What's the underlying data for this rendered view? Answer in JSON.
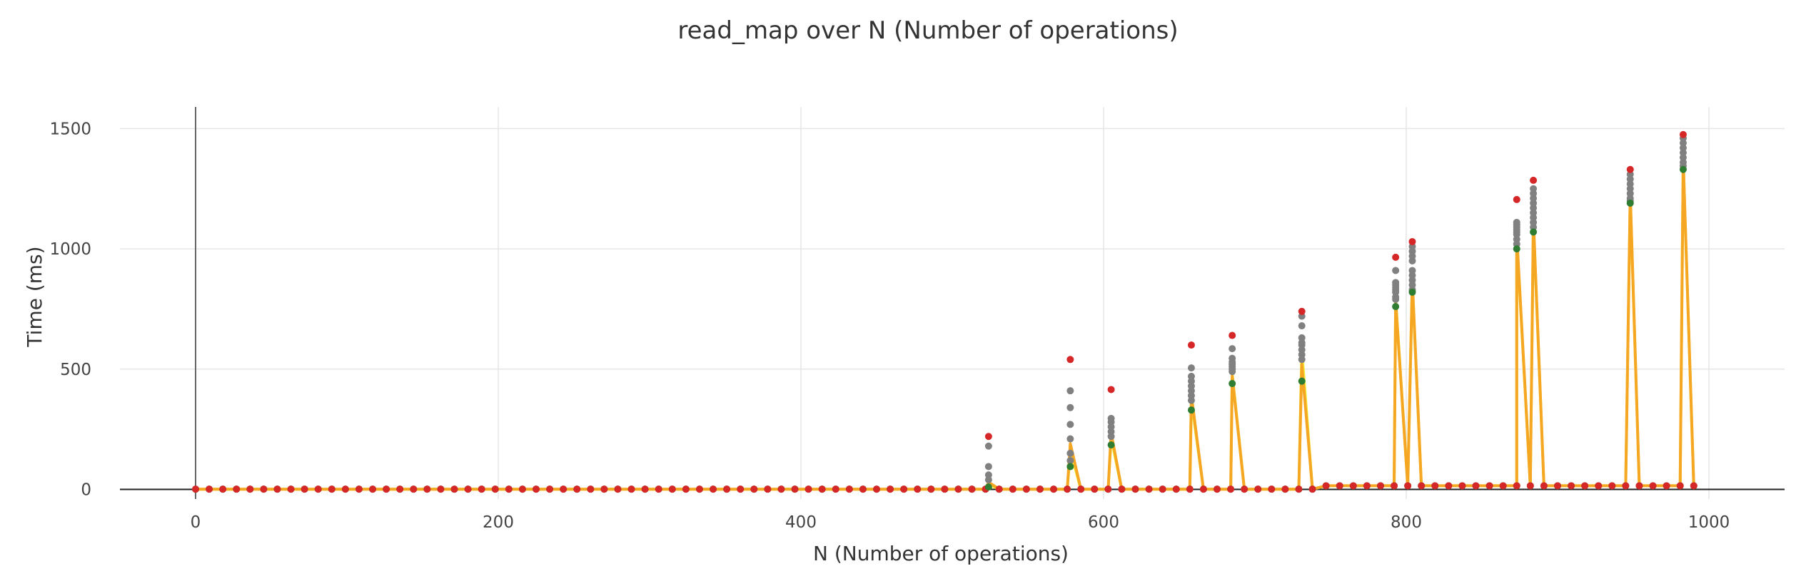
{
  "chart_data": {
    "type": "scatter",
    "title": "read_map over N (Number of operations)",
    "xlabel": "N (Number of operations)",
    "ylabel": "Time (ms)",
    "xlim": [
      -50,
      1050
    ],
    "ylim": [
      -40,
      1590
    ],
    "xticks": [
      0,
      200,
      400,
      600,
      800,
      1000
    ],
    "yticks": [
      0,
      500,
      1000,
      1500
    ],
    "grid": true,
    "colors": {
      "samples": "#808080",
      "max": "#d62728",
      "min": "#2e7d32",
      "mean_line": "#f5a623",
      "median_line": "#f2ef3a"
    },
    "baseline": {
      "x_start": 0,
      "x_end": 990,
      "x_step": 9,
      "value_low": 1,
      "value_high": 15,
      "high_after_x": 740
    },
    "spikes": [
      {
        "x": 524,
        "mean": 30,
        "median": 20,
        "min": 10,
        "max": 220,
        "samples": [
          95,
          180,
          40,
          60
        ]
      },
      {
        "x": 578,
        "mean": 190,
        "median": 160,
        "min": 95,
        "max": 540,
        "samples": [
          410,
          340,
          270,
          210,
          150,
          120
        ]
      },
      {
        "x": 605,
        "mean": 235,
        "median": 215,
        "min": 185,
        "max": 415,
        "samples": [
          295,
          280,
          260,
          240,
          220
        ]
      },
      {
        "x": 658,
        "mean": 390,
        "median": 370,
        "min": 330,
        "max": 600,
        "samples": [
          505,
          470,
          450,
          430,
          410,
          390,
          370
        ]
      },
      {
        "x": 685,
        "mean": 470,
        "median": 480,
        "min": 440,
        "max": 640,
        "samples": [
          585,
          545,
          530,
          520,
          510,
          500,
          490
        ]
      },
      {
        "x": 731,
        "mean": 520,
        "median": 580,
        "min": 450,
        "max": 740,
        "samples": [
          720,
          680,
          630,
          610,
          600,
          580,
          560,
          540
        ]
      },
      {
        "x": 793,
        "mean": 780,
        "median": 790,
        "min": 760,
        "max": 965,
        "samples": [
          910,
          860,
          850,
          840,
          830,
          820,
          800,
          790
        ]
      },
      {
        "x": 804,
        "mean": 870,
        "median": 860,
        "min": 820,
        "max": 1030,
        "samples": [
          1010,
          990,
          970,
          950,
          910,
          890,
          870,
          850,
          830
        ]
      },
      {
        "x": 873,
        "mean": 1060,
        "median": 1050,
        "min": 1000,
        "max": 1205,
        "samples": [
          1110,
          1100,
          1090,
          1080,
          1070,
          1060,
          1040,
          1020
        ]
      },
      {
        "x": 884,
        "mean": 1125,
        "median": 1110,
        "min": 1070,
        "max": 1285,
        "samples": [
          1250,
          1230,
          1210,
          1190,
          1170,
          1150,
          1130,
          1110,
          1090
        ]
      },
      {
        "x": 948,
        "mean": 1230,
        "median": 1220,
        "min": 1190,
        "max": 1330,
        "samples": [
          1310,
          1290,
          1270,
          1250,
          1230,
          1210,
          1200
        ]
      },
      {
        "x": 983,
        "mean": 1370,
        "median": 1360,
        "min": 1330,
        "max": 1475,
        "samples": [
          1460,
          1440,
          1420,
          1400,
          1380,
          1360,
          1345
        ]
      }
    ]
  }
}
